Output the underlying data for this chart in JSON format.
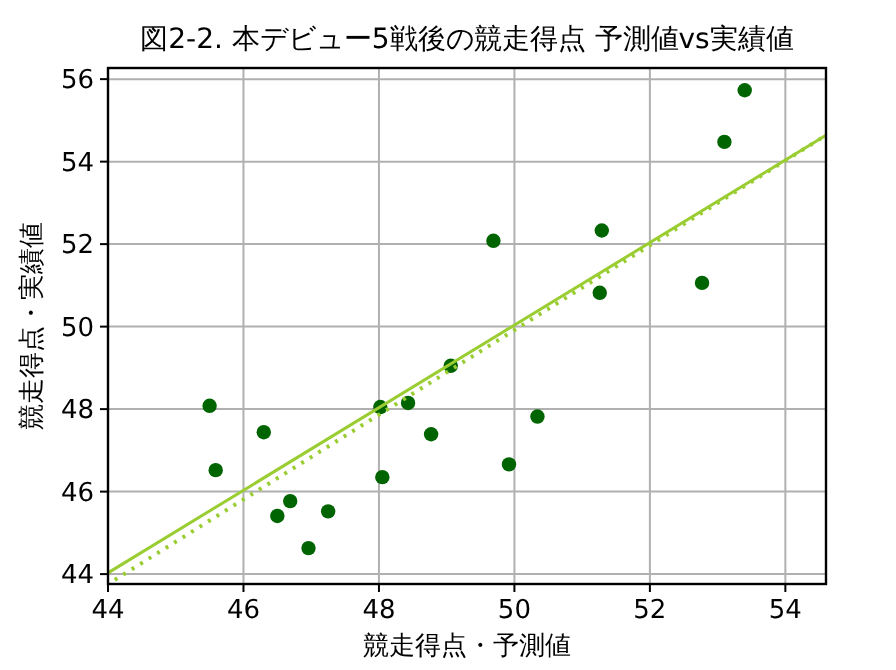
{
  "chart_data": {
    "type": "scatter",
    "title": "図2-2. 本デビュー5戦後の競走得点 予測値vs実績値",
    "xlabel": "競走得点・予測値",
    "ylabel": "競走得点・実績値",
    "xlim": [
      44,
      54.6
    ],
    "ylim": [
      43.76,
      56.27
    ],
    "xticks": [
      44,
      46,
      48,
      50,
      52,
      54
    ],
    "yticks": [
      44,
      46,
      48,
      50,
      52,
      54,
      56
    ],
    "grid": true,
    "series": [
      {
        "color": "#006400",
        "marker": "circle",
        "x": [
          45.5,
          45.59,
          46.3,
          46.5,
          46.69,
          46.96,
          47.25,
          48.02,
          48.05,
          48.43,
          48.77,
          49.06,
          49.69,
          51.29,
          51.26,
          52.77,
          53.1,
          53.4,
          50.34,
          49.92
        ],
        "values": [
          48.08,
          46.52,
          47.44,
          45.41,
          45.77,
          44.63,
          45.52,
          48.05,
          46.35,
          48.15,
          47.39,
          49.05,
          52.08,
          52.33,
          50.82,
          51.06,
          54.48,
          55.73,
          47.82,
          46.66
        ]
      },
      {
        "type": "line",
        "color": "#9acd32",
        "line_style": "solid",
        "x": [
          44,
          54.6
        ],
        "values": [
          44.03,
          54.64
        ]
      },
      {
        "type": "line",
        "color": "#9acd32",
        "line_style": "dotted",
        "x": [
          44.1,
          54.6
        ],
        "values": [
          43.86,
          54.64
        ]
      }
    ]
  }
}
